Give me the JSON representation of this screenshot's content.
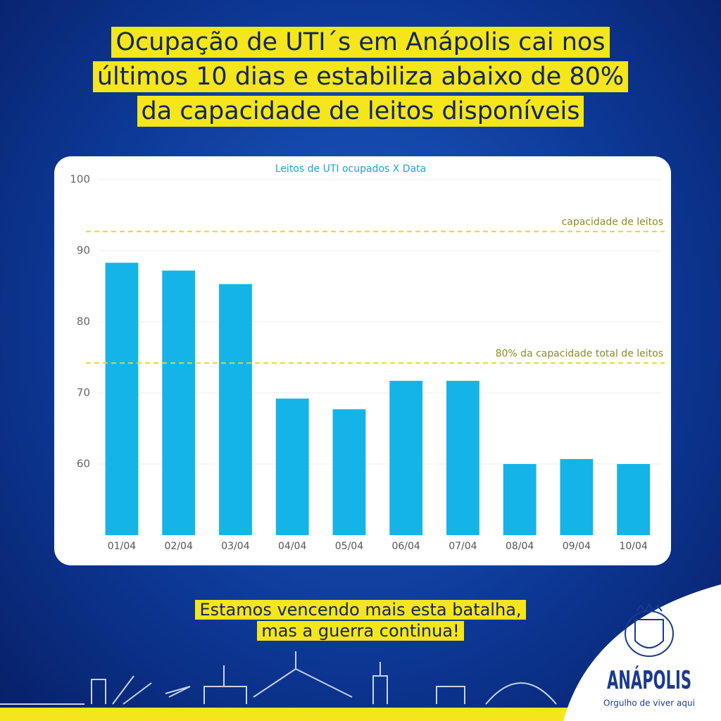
{
  "header": {
    "title_lines": [
      "Ocupação de UTI´s em Anápolis cai nos",
      "últimos 10 dias e estabiliza abaixo de 80%",
      "da capacidade de leitos disponíveis"
    ]
  },
  "chart_data": {
    "type": "bar",
    "title": "Leitos de UTI ocupados X Data",
    "categories": [
      "01/04",
      "02/04",
      "03/04",
      "04/04",
      "05/04",
      "06/04",
      "07/04",
      "08/04",
      "09/04",
      "10/04"
    ],
    "values": [
      88.3,
      87.2,
      85.3,
      69.2,
      67.7,
      71.7,
      71.7,
      60,
      60.7,
      60
    ],
    "color": "#14b4e8",
    "ylim": [
      50,
      100
    ],
    "yticks": [
      60,
      70,
      80,
      90,
      100
    ],
    "grid": true,
    "reference_lines": [
      {
        "value": 92.7,
        "label": "capacidade de leitos",
        "color": "#e3dc1c"
      },
      {
        "value": 74.2,
        "label": "80% da capacidade total de leitos",
        "color": "#e3dc1c"
      }
    ]
  },
  "footer": {
    "lines": [
      "Estamos vencendo mais esta batalha,",
      "mas a guerra continua!"
    ]
  },
  "logo": {
    "name": "ANÁPOLIS",
    "slogan": "Orgulho de viver aqui"
  }
}
